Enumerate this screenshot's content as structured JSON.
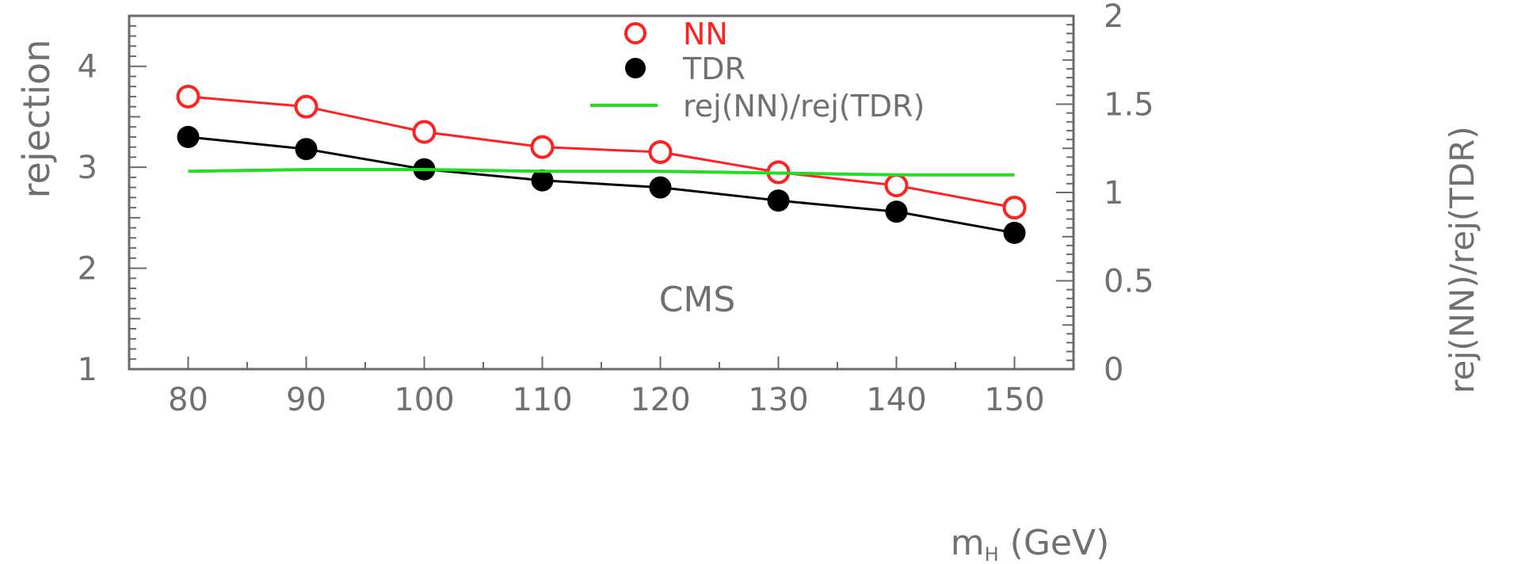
{
  "chart_data": {
    "type": "line",
    "x": [
      80,
      90,
      100,
      110,
      120,
      130,
      140,
      150
    ],
    "xlabel": "m",
    "xlabel_sub": "H",
    "xlabel_unit": "(GeV)",
    "xlim": [
      75,
      155
    ],
    "xticks": [
      80,
      90,
      100,
      110,
      120,
      130,
      140,
      150
    ],
    "ylabel": "rejection",
    "ylim": [
      1,
      4.5
    ],
    "yticks": [
      1,
      2,
      3,
      4
    ],
    "y2label": "rej(NN)/rej(TDR)",
    "y2lim": [
      0,
      2
    ],
    "y2ticks": [
      0,
      0.5,
      1,
      1.5,
      2
    ],
    "annotation": "CMS",
    "legend_position": "top-center",
    "series": [
      {
        "name": "NN",
        "axis": "left",
        "marker": "open-circle",
        "color": "#ff2020",
        "values": [
          3.7,
          3.6,
          3.35,
          3.2,
          3.15,
          2.95,
          2.82,
          2.6
        ]
      },
      {
        "name": "TDR",
        "axis": "left",
        "marker": "filled-circle",
        "color": "#000000",
        "values": [
          3.3,
          3.18,
          2.98,
          2.87,
          2.8,
          2.67,
          2.56,
          2.35
        ]
      },
      {
        "name": "rej(NN)/rej(TDR)",
        "axis": "right",
        "marker": "none",
        "color": "#22dd22",
        "values": [
          1.12,
          1.13,
          1.13,
          1.12,
          1.12,
          1.11,
          1.1,
          1.1
        ]
      }
    ]
  }
}
